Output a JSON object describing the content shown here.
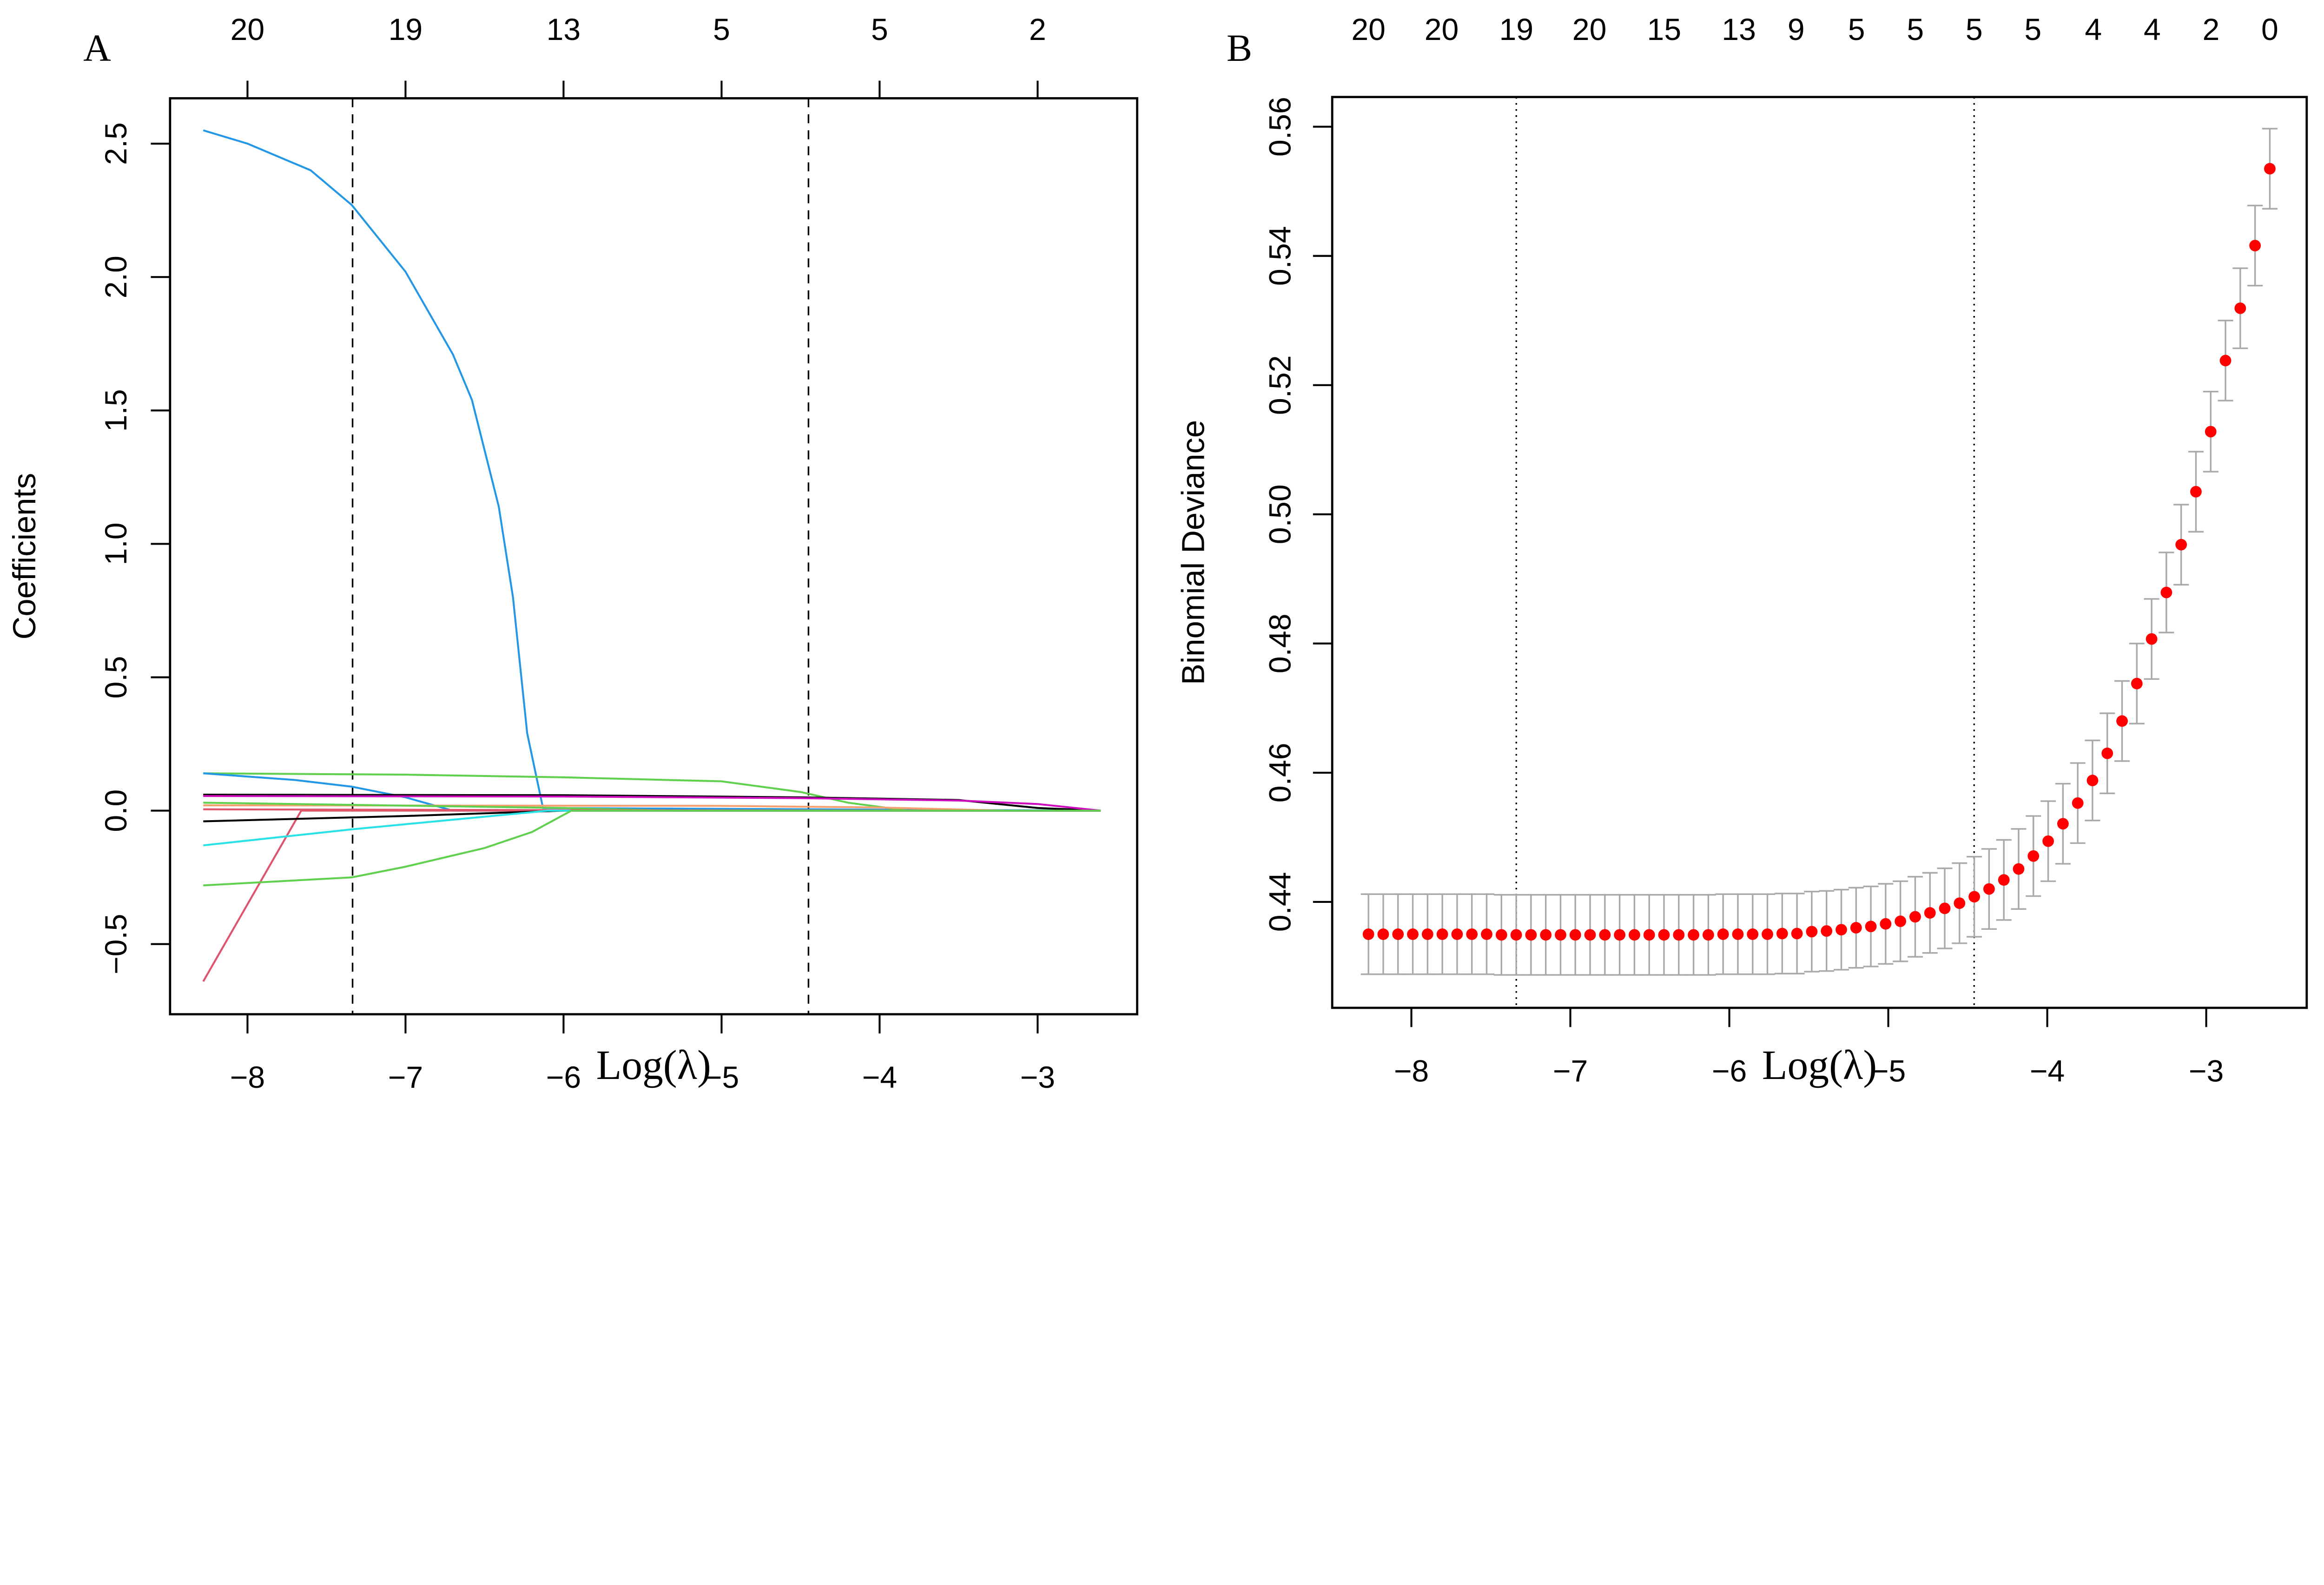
{
  "chart_data": [
    {
      "panel_label": "A",
      "type": "line",
      "xlabel": "Log(λ)",
      "ylabel": "Coefficients",
      "xlim": [
        -8.49,
        -2.37
      ],
      "ylim": [
        -0.763,
        2.67
      ],
      "xticks": [
        -8,
        -7,
        -6,
        -5,
        -4,
        -3
      ],
      "xtick_labels": [
        "−8",
        "−7",
        "−6",
        "−5",
        "−4",
        "−3"
      ],
      "yticks": [
        -0.5,
        0,
        0.5,
        1,
        1.5,
        2,
        2.5
      ],
      "ytick_labels": [
        "−0.5",
        "0.0",
        "0.5",
        "1.0",
        "1.5",
        "2.0",
        "2.5"
      ],
      "top_ticks": [
        -8,
        -7,
        -6,
        -5,
        -4,
        -3
      ],
      "top_labels": [
        "20",
        "19",
        "13",
        "5",
        "5",
        "2"
      ],
      "vlines": [
        -7.335,
        -4.45
      ],
      "vline_style": "dashed",
      "series": [
        {
          "color": "#2297E6",
          "x": [
            -8.28,
            -8,
            -7.6,
            -7.34,
            -7,
            -6.7,
            -6.58,
            -6.41,
            -6.32,
            -6.23,
            -6.13,
            -2.6
          ],
          "y": [
            2.55,
            2.5,
            2.4,
            2.27,
            2.02,
            1.71,
            1.54,
            1.14,
            0.8,
            0.29,
            0.01,
            0
          ]
        },
        {
          "color": "#61D04F",
          "x": [
            -8.28,
            -7,
            -6,
            -5,
            -4.5,
            -4.2,
            -3.82,
            -2.6
          ],
          "y": [
            0.14,
            0.135,
            0.125,
            0.11,
            0.07,
            0.03,
            0,
            0
          ]
        },
        {
          "color": "#2297E6",
          "x": [
            -8.28,
            -7.7,
            -7.34,
            -7,
            -6.7,
            -2.6
          ],
          "y": [
            0.14,
            0.115,
            0.09,
            0.05,
            0,
            0
          ]
        },
        {
          "color": "#000000",
          "x": [
            -8.28,
            -6,
            -4.5,
            -3.5,
            -3,
            -2.6
          ],
          "y": [
            0.06,
            0.058,
            0.05,
            0.04,
            0.01,
            0
          ]
        },
        {
          "color": "#CD0BBC",
          "x": [
            -8.28,
            -6,
            -4.5,
            -3.5,
            -3,
            -2.6
          ],
          "y": [
            0.055,
            0.053,
            0.047,
            0.038,
            0.025,
            0
          ]
        },
        {
          "color": "#F5A070",
          "x": [
            -8.28,
            -5,
            -4,
            -3.2,
            -2.6
          ],
          "y": [
            0.02,
            0.018,
            0.012,
            0,
            0
          ]
        },
        {
          "color": "#61D04F",
          "x": [
            -8.28,
            -6,
            -5.3,
            -2.6
          ],
          "y": [
            0.03,
            0.01,
            0,
            0
          ]
        },
        {
          "color": "#DF536B",
          "x": [
            -8.28,
            -6,
            -2.6
          ],
          "y": [
            0.005,
            0.002,
            0
          ]
        },
        {
          "color": "#DF536B",
          "x": [
            -8.28,
            -7.66,
            -2.6
          ],
          "y": [
            -0.64,
            0,
            0
          ]
        },
        {
          "color": "#000000",
          "x": [
            -8.28,
            -7,
            -6,
            -2.6
          ],
          "y": [
            -0.04,
            -0.02,
            0,
            0
          ]
        },
        {
          "color": "#28E2E5",
          "x": [
            -8.28,
            -7.34,
            -6.1,
            -2.6
          ],
          "y": [
            -0.13,
            -0.07,
            0,
            0
          ]
        },
        {
          "color": "#61D04F",
          "x": [
            -8.28,
            -7.34,
            -7,
            -6.5,
            -6.2,
            -5.95,
            -2.6
          ],
          "y": [
            -0.28,
            -0.25,
            -0.21,
            -0.14,
            -0.08,
            0,
            0
          ]
        }
      ]
    },
    {
      "panel_label": "B",
      "type": "scatter",
      "xlabel": "Log(λ)",
      "ylabel": "Binomial Deviance",
      "xlim": [
        -8.498,
        -2.368
      ],
      "ylim": [
        0.4236,
        0.5646
      ],
      "xticks": [
        -8,
        -7,
        -6,
        -5,
        -4,
        -3
      ],
      "xtick_labels": [
        "−8",
        "−7",
        "−6",
        "−5",
        "−4",
        "−3"
      ],
      "yticks": [
        0.44,
        0.46,
        0.48,
        0.5,
        0.52,
        0.54,
        0.56
      ],
      "ytick_labels": [
        "0.44",
        "0.46",
        "0.48",
        "0.50",
        "0.52",
        "0.54",
        "0.56"
      ],
      "top_ticks": [
        -8.27,
        -7.81,
        -7.34,
        -6.88,
        -6.41,
        -5.94,
        -5.58,
        -5.2,
        -4.83,
        -4.46,
        -4.09,
        -3.71,
        -3.34,
        -2.97,
        -2.6
      ],
      "top_labels": [
        "20",
        "20",
        "19",
        "20",
        "15",
        "13",
        "9",
        "5",
        "5",
        "5",
        "5",
        "4",
        "4",
        "2",
        "0"
      ],
      "vlines": [
        -7.34,
        -4.46
      ],
      "vline_style": "dotted",
      "x_start": -8.27,
      "x_end": -2.6,
      "point_color": "#FF0000",
      "errorbar_color": "#A9A9A9",
      "se": 0.0062,
      "values": [
        0.435,
        0.435,
        0.435,
        0.435,
        0.435,
        0.435,
        0.435,
        0.435,
        0.435,
        0.4349,
        0.4349,
        0.4349,
        0.4349,
        0.4349,
        0.4349,
        0.4349,
        0.4349,
        0.4349,
        0.4349,
        0.4349,
        0.4349,
        0.4349,
        0.4349,
        0.4349,
        0.435,
        0.435,
        0.435,
        0.435,
        0.4351,
        0.4351,
        0.4354,
        0.4355,
        0.4357,
        0.436,
        0.4362,
        0.4366,
        0.437,
        0.4377,
        0.4383,
        0.439,
        0.4398,
        0.4408,
        0.442,
        0.4434,
        0.4451,
        0.4471,
        0.4494,
        0.4521,
        0.4553,
        0.4588,
        0.463,
        0.468,
        0.4738,
        0.4807,
        0.4879,
        0.4953,
        0.5035,
        0.5128,
        0.5238,
        0.5319,
        0.5416,
        0.5535
      ]
    }
  ]
}
